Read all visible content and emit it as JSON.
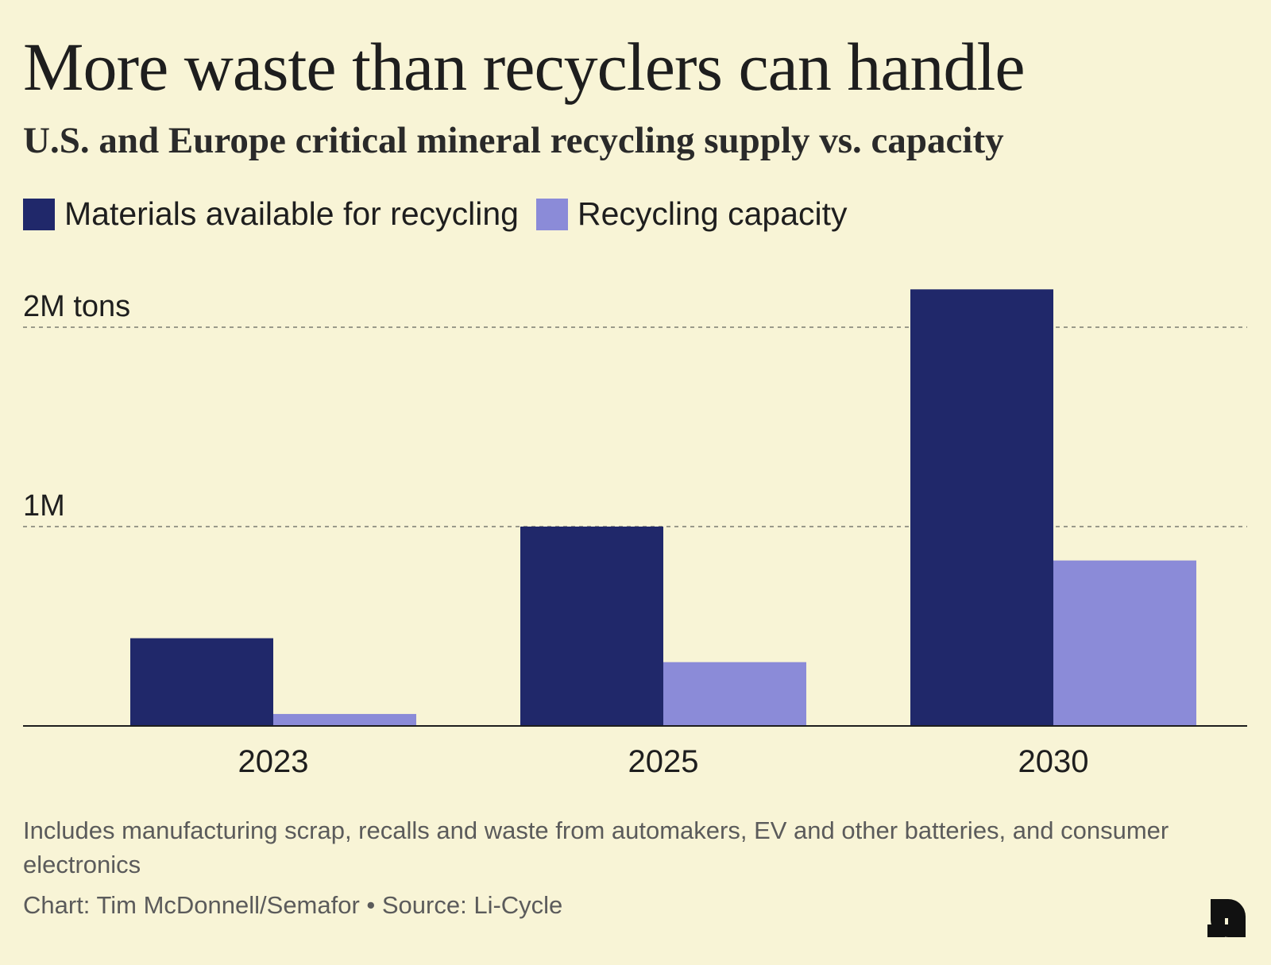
{
  "title": "More waste than recyclers can handle",
  "subtitle": "U.S. and Europe critical mineral recycling supply vs. capacity",
  "footnote": "Includes manufacturing scrap, recalls and waste from automakers, EV and other batteries, and consumer electronics",
  "credit": "Chart: Tim McDonnell/Semafor • Source: Li-Cycle",
  "logo_icon": "semafor-logo-icon",
  "chart_data": {
    "type": "bar",
    "categories": [
      "2023",
      "2025",
      "2030"
    ],
    "series": [
      {
        "name": "Materials available for recycling",
        "color": "#20286a",
        "values": [
          0.44,
          1.0,
          2.19
        ]
      },
      {
        "name": "Recycling capacity",
        "color": "#8b8bd8",
        "values": [
          0.06,
          0.32,
          0.83
        ]
      }
    ],
    "ytick_labels": [
      {
        "value": 2,
        "label": "2M tons"
      },
      {
        "value": 1,
        "label": "1M"
      }
    ],
    "ylim": [
      0,
      2.2
    ],
    "grid": true,
    "legend": "top-left"
  }
}
